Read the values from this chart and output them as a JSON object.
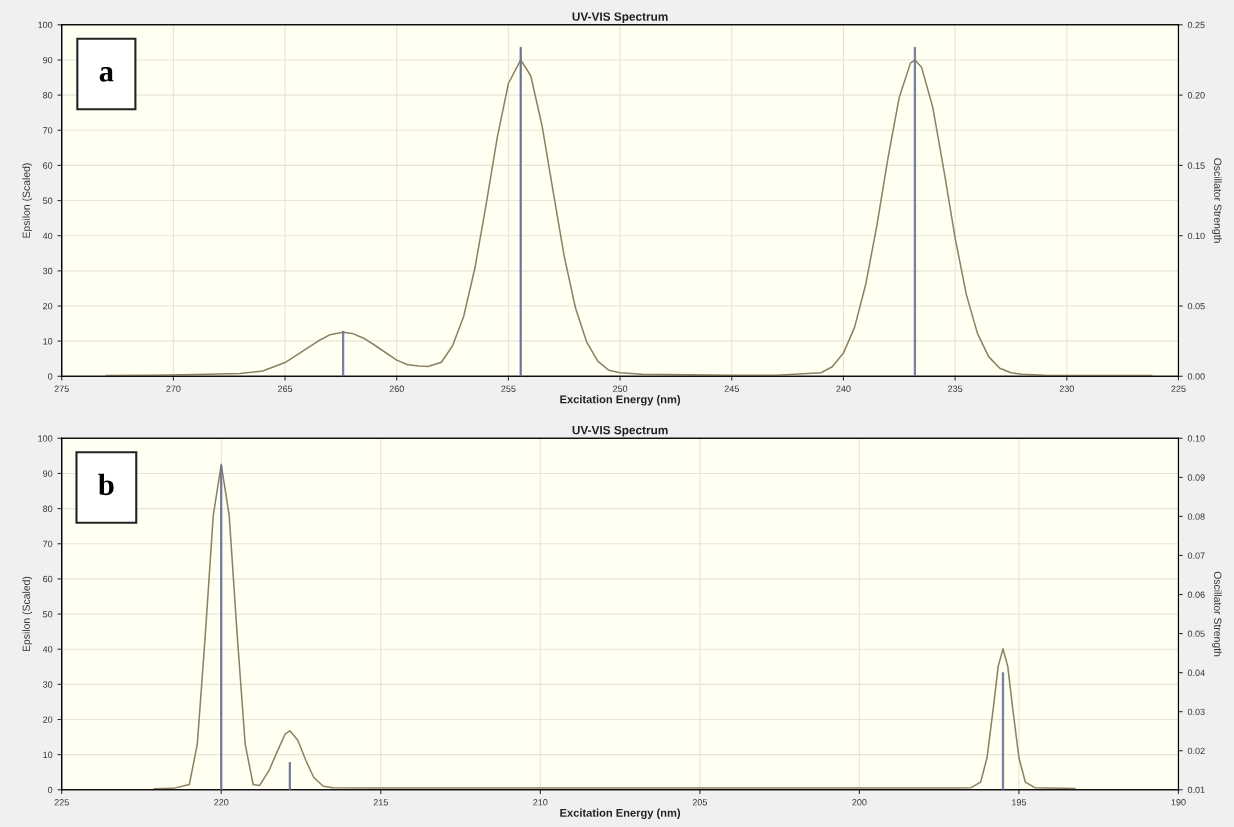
{
  "chart_data": [
    {
      "type": "line",
      "title": "UV-VIS Spectrum",
      "xlabel": "Excitation Energy (nm)",
      "ylabel": "Epsilon (Scaled)",
      "y2label": "Oscillator Strength",
      "annotations": [
        "a"
      ],
      "xlim": [
        275,
        225
      ],
      "xticks": [
        275,
        270,
        265,
        260,
        255,
        250,
        245,
        240,
        235,
        230,
        225
      ],
      "ylim": [
        0,
        100
      ],
      "yticks": [
        0,
        10,
        20,
        30,
        40,
        50,
        60,
        70,
        80,
        90,
        100
      ],
      "y2lim": [
        0,
        0.25
      ],
      "y2ticks": [
        {
          "value": 0,
          "label": "0.00"
        },
        {
          "value": 0.05,
          "label": "0.05"
        },
        {
          "value": 0.1,
          "label": "0.10"
        },
        {
          "value": 0.15,
          "label": "0.15"
        },
        {
          "value": 0.2,
          "label": "0.20"
        },
        {
          "value": 0.25,
          "label": "0.25"
        }
      ],
      "grid": true,
      "marker": "none",
      "line_style": "solid",
      "series": [
        {
          "color": "#8c8160",
          "x": [
            273,
            271,
            269,
            267,
            266,
            265,
            264,
            263.5,
            263,
            262.4,
            262,
            261.5,
            261,
            260,
            259.5,
            259,
            258.6,
            258,
            257.5,
            257,
            256.5,
            256,
            255.5,
            255,
            254.45,
            254,
            253.5,
            253,
            252.5,
            252,
            251.5,
            251,
            250.5,
            250,
            249,
            247,
            245,
            243,
            241,
            240.5,
            240,
            239.5,
            239,
            238.5,
            238,
            237.5,
            237,
            236.8,
            236.5,
            236,
            235.5,
            235,
            234.5,
            234,
            233.5,
            233,
            232.5,
            232,
            231,
            229,
            226.2
          ],
          "values": [
            0.2,
            0.3,
            0.5,
            0.8,
            1.5,
            3.9,
            8.0,
            10.1,
            11.8,
            12.5,
            12.2,
            10.9,
            8.9,
            4.6,
            3.3,
            2.9,
            2.8,
            4.0,
            8.7,
            17.1,
            30.8,
            48.8,
            67.9,
            83.3,
            90,
            85.5,
            71.5,
            52.7,
            34.1,
            19.5,
            9.8,
            4.3,
            1.7,
            1.0,
            0.6,
            0.4,
            0.3,
            0.3,
            1.0,
            2.7,
            6.6,
            14,
            26.2,
            43.0,
            62.3,
            79.4,
            89.1,
            90,
            87.9,
            76.5,
            58.5,
            39.4,
            23.3,
            12.2,
            5.6,
            2.3,
            1.0,
            0.6,
            0.3,
            0.2,
            0.2
          ]
        },
        {
          "type": "bar",
          "axis": "y2",
          "color": "#6e7399",
          "x": [
            262.4,
            254.45,
            236.8
          ],
          "values": [
            0.032,
            0.234,
            0.234
          ]
        }
      ]
    },
    {
      "type": "line",
      "title": "UV-VIS Spectrum",
      "xlabel": "Excitation Energy (nm)",
      "ylabel": "Epsilon (Scaled)",
      "y2label": "Oscillator Strength",
      "annotations": [
        "b"
      ],
      "xlim": [
        225,
        190
      ],
      "xticks": [
        225,
        220,
        215,
        210,
        205,
        200,
        195,
        190
      ],
      "ylim": [
        0,
        100
      ],
      "yticks": [
        0,
        10,
        20,
        30,
        40,
        50,
        60,
        70,
        80,
        90,
        100
      ],
      "y2lim": [
        0.01,
        0.1
      ],
      "y2ticks": [
        {
          "value": 0.01,
          "label": "0.01"
        },
        {
          "value": 0.02,
          "label": "0.02"
        },
        {
          "value": 0.03,
          "label": "0.03"
        },
        {
          "value": 0.04,
          "label": "0.04"
        },
        {
          "value": 0.05,
          "label": "0.05"
        },
        {
          "value": 0.06,
          "label": "0.06"
        },
        {
          "value": 0.07,
          "label": "0.07"
        },
        {
          "value": 0.08,
          "label": "0.08"
        },
        {
          "value": 0.09,
          "label": "0.09"
        },
        {
          "value": 0.1,
          "label": "0.10"
        }
      ],
      "grid": true,
      "marker": "none",
      "line_style": "solid",
      "series": [
        {
          "color": "#8c8160",
          "x": [
            222.1,
            221.5,
            221,
            220.75,
            220.5,
            220.25,
            220,
            219.75,
            219.5,
            219.25,
            219,
            218.8,
            218.5,
            218.25,
            218,
            217.85,
            217.6,
            217.35,
            217.1,
            216.8,
            216.5,
            215,
            210,
            205,
            200,
            197,
            196.5,
            196.2,
            196,
            195.8,
            195.65,
            195.5,
            195.35,
            195.2,
            195,
            194.8,
            194.5,
            193.25
          ],
          "values": [
            0.3,
            0.4,
            1.5,
            13,
            44,
            78,
            92.6,
            78,
            44,
            13,
            1.5,
            1.2,
            5.5,
            10.8,
            15.8,
            16.8,
            14.1,
            8.4,
            3.5,
            1.0,
            0.6,
            0.5,
            0.5,
            0.5,
            0.5,
            0.5,
            0.6,
            2.2,
            9.1,
            23.5,
            35.1,
            40.1,
            35.1,
            23.5,
            9.1,
            2.2,
            0.6,
            0.4
          ]
        },
        {
          "type": "bar",
          "axis": "y2",
          "color": "#6e7399",
          "x": [
            220,
            217.85,
            195.5
          ],
          "values": [
            0.093,
            0.017,
            0.04
          ]
        }
      ]
    }
  ]
}
